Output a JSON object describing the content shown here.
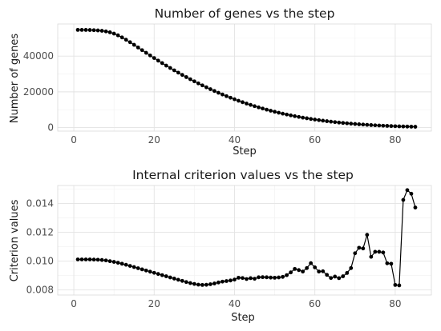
{
  "chart_data": [
    {
      "type": "line",
      "title": "Number of genes vs the step",
      "xlabel": "Step",
      "ylabel": "Number of genes",
      "xlim": [
        -4,
        89
      ],
      "ylim": [
        -2000,
        58000
      ],
      "x_ticks": [
        0,
        20,
        40,
        60,
        80
      ],
      "y_ticks": [
        0,
        20000,
        40000
      ],
      "y_tick_labels": [
        "0",
        "20000",
        "40000"
      ],
      "grid": true,
      "legend": "none",
      "series": [
        {
          "x": [
            1,
            2,
            3,
            4,
            5,
            6,
            7,
            8,
            9,
            10,
            11,
            12,
            13,
            14,
            15,
            16,
            17,
            18,
            19,
            20,
            21,
            22,
            23,
            24,
            25,
            26,
            27,
            28,
            29,
            30,
            31,
            32,
            33,
            34,
            35,
            36,
            37,
            38,
            39,
            40,
            41,
            42,
            43,
            44,
            45,
            46,
            47,
            48,
            49,
            50,
            51,
            52,
            53,
            54,
            55,
            56,
            57,
            58,
            59,
            60,
            61,
            62,
            63,
            64,
            65,
            66,
            67,
            68,
            69,
            70,
            71,
            72,
            73,
            74,
            75,
            76,
            77,
            78,
            79,
            80,
            81,
            82,
            83,
            84,
            85
          ],
          "y": [
            54700,
            54690,
            54670,
            54620,
            54530,
            54390,
            54180,
            53850,
            53350,
            52620,
            51640,
            50480,
            49180,
            47790,
            46330,
            44850,
            43350,
            41860,
            40380,
            38920,
            37490,
            36080,
            34700,
            33360,
            32040,
            30750,
            29490,
            28260,
            27060,
            25880,
            24740,
            23630,
            22540,
            21490,
            20470,
            19480,
            18520,
            17590,
            16700,
            15840,
            15010,
            14210,
            13440,
            12700,
            11990,
            11310,
            10660,
            10030,
            9430,
            8860,
            8310,
            7790,
            7300,
            6830,
            6380,
            5960,
            5560,
            5180,
            4820,
            4480,
            4160,
            3860,
            3570,
            3300,
            3050,
            2810,
            2590,
            2380,
            2190,
            2010,
            1840,
            1680,
            1530,
            1390,
            1260,
            1140,
            1030,
            930,
            840,
            750,
            680,
            610,
            550,
            490,
            440
          ]
        }
      ]
    },
    {
      "type": "line",
      "title": "Internal criterion values vs the step",
      "xlabel": "Step",
      "ylabel": "Criterion values",
      "xlim": [
        -4,
        89
      ],
      "ylim": [
        0.00765,
        0.01525
      ],
      "x_ticks": [
        0,
        20,
        40,
        60,
        80
      ],
      "y_ticks": [
        0.008,
        0.01,
        0.012,
        0.014
      ],
      "y_tick_labels": [
        "0.008",
        "0.010",
        "0.012",
        "0.014"
      ],
      "grid": true,
      "legend": "none",
      "series": [
        {
          "x": [
            1,
            2,
            3,
            4,
            5,
            6,
            7,
            8,
            9,
            10,
            11,
            12,
            13,
            14,
            15,
            16,
            17,
            18,
            19,
            20,
            21,
            22,
            23,
            24,
            25,
            26,
            27,
            28,
            29,
            30,
            31,
            32,
            33,
            34,
            35,
            36,
            37,
            38,
            39,
            40,
            41,
            42,
            43,
            44,
            45,
            46,
            47,
            48,
            49,
            50,
            51,
            52,
            53,
            54,
            55,
            56,
            57,
            58,
            59,
            60,
            61,
            62,
            63,
            64,
            65,
            66,
            67,
            68,
            69,
            70,
            71,
            72,
            73,
            74,
            75,
            76,
            77,
            78,
            79,
            80,
            81,
            82,
            83,
            84,
            85
          ],
          "y": [
            0.01012,
            0.01012,
            0.01012,
            0.01012,
            0.01011,
            0.0101,
            0.01008,
            0.01005,
            0.01,
            0.00995,
            0.00989,
            0.00982,
            0.00975,
            0.00967,
            0.00959,
            0.00951,
            0.00943,
            0.00935,
            0.00927,
            0.00919,
            0.00911,
            0.00903,
            0.00895,
            0.00887,
            0.00879,
            0.00871,
            0.00863,
            0.00855,
            0.00848,
            0.00842,
            0.00837,
            0.00835,
            0.00836,
            0.0084,
            0.00845,
            0.00852,
            0.00858,
            0.00862,
            0.00866,
            0.00872,
            0.00885,
            0.00883,
            0.00876,
            0.00882,
            0.00878,
            0.00888,
            0.00889,
            0.00888,
            0.00886,
            0.00885,
            0.00887,
            0.00891,
            0.00903,
            0.00922,
            0.00946,
            0.00938,
            0.00928,
            0.00952,
            0.00986,
            0.00957,
            0.00928,
            0.0093,
            0.00905,
            0.00883,
            0.00893,
            0.00882,
            0.00895,
            0.00918,
            0.00952,
            0.01055,
            0.01093,
            0.01088,
            0.01183,
            0.0103,
            0.01065,
            0.01065,
            0.0106,
            0.00985,
            0.00982,
            0.00835,
            0.00832,
            0.01425,
            0.01493,
            0.01468,
            0.01372
          ]
        }
      ]
    }
  ]
}
